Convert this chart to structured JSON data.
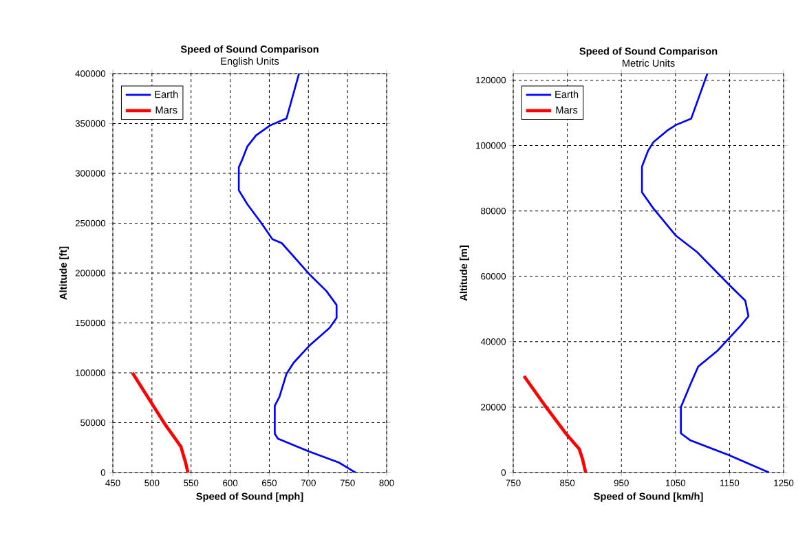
{
  "chart_data": [
    {
      "type": "line",
      "title": "Speed of Sound Comparison",
      "subtitle": "English Units",
      "xlabel": "Speed of Sound [mph]",
      "ylabel": "Altitude [ft]",
      "xlim": [
        450,
        800
      ],
      "xticks": [
        450,
        500,
        550,
        600,
        650,
        700,
        750,
        800
      ],
      "ylim": [
        0,
        400000
      ],
      "yticks": [
        0,
        50000,
        100000,
        150000,
        200000,
        250000,
        300000,
        350000,
        400000
      ],
      "grid": true,
      "legend": "top left",
      "marker": "none",
      "line_style": "solid",
      "series": [
        {
          "name": "Earth",
          "color": "#0000ff",
          "x": [
            760,
            739,
            701,
            661,
            657,
            657,
            663,
            672,
            681,
            701,
            727,
            736,
            736,
            723,
            701,
            666,
            654,
            639,
            622,
            611,
            611,
            615,
            622,
            633,
            651,
            663,
            672,
            688
          ],
          "values": [
            0,
            10000,
            21000,
            34000,
            39000,
            67000,
            76000,
            99000,
            110000,
            127000,
            145000,
            155000,
            168000,
            182000,
            199000,
            230000,
            234000,
            251000,
            269000,
            283000,
            306000,
            313000,
            327000,
            338000,
            348000,
            352000,
            355000,
            400000
          ]
        },
        {
          "name": "Mars",
          "color": "#ff0000",
          "x": [
            546,
            543,
            537,
            517,
            496,
            475
          ],
          "values": [
            0,
            10000,
            26000,
            48000,
            74000,
            100000
          ]
        }
      ]
    },
    {
      "type": "line",
      "title": "Speed of Sound Comparison",
      "subtitle": "Metric Units",
      "xlabel": "Speed of Sound [km/h]",
      "ylabel": "Altitude [m]",
      "xlim": [
        750,
        1250
      ],
      "xticks": [
        750,
        850,
        950,
        1050,
        1150,
        1250
      ],
      "ylim": [
        0,
        122000
      ],
      "yticks": [
        0,
        20000,
        40000,
        60000,
        80000,
        100000,
        120000
      ],
      "grid": true,
      "legend": "top left",
      "marker": "none",
      "line_style": "solid",
      "series": [
        {
          "name": "Earth",
          "color": "#0000ff",
          "x": [
            1223,
            1149,
            1077,
            1060,
            1060,
            1077,
            1092,
            1128,
            1171,
            1185,
            1179,
            1153,
            1128,
            1090,
            1051,
            1009,
            988,
            988,
            999,
            1009,
            1035,
            1051,
            1079,
            1109
          ],
          "values": [
            0,
            5300,
            9900,
            12000,
            20000,
            26700,
            32400,
            37300,
            45000,
            47800,
            52600,
            56800,
            61000,
            67400,
            72400,
            80800,
            85700,
            93500,
            98300,
            101000,
            104600,
            106300,
            108200,
            122000
          ]
        },
        {
          "name": "Mars",
          "color": "#ff0000",
          "x": [
            884,
            878,
            872,
            847,
            809,
            770
          ],
          "values": [
            0,
            4200,
            7200,
            12000,
            20400,
            29500
          ]
        }
      ]
    }
  ]
}
